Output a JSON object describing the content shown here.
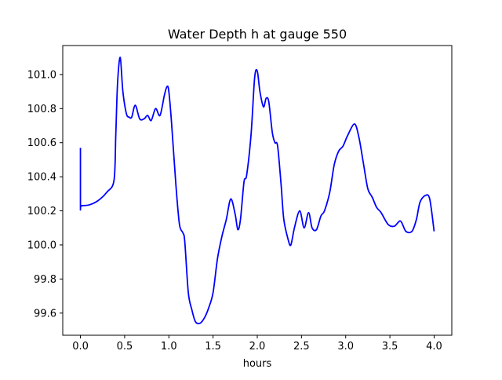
{
  "chart_data": {
    "type": "line",
    "title": "Water Depth h at gauge 550",
    "xlabel": "hours",
    "ylabel": "",
    "xlim": [
      -0.2,
      4.2
    ],
    "ylim": [
      99.47,
      101.17
    ],
    "xticks": [
      0.0,
      0.5,
      1.0,
      1.5,
      2.0,
      2.5,
      3.0,
      3.5,
      4.0
    ],
    "xtick_labels": [
      "0.0",
      "0.5",
      "1.0",
      "1.5",
      "2.0",
      "2.5",
      "3.0",
      "3.5",
      "4.0"
    ],
    "yticks": [
      99.6,
      99.8,
      100.0,
      100.2,
      100.4,
      100.6,
      100.8,
      101.0
    ],
    "ytick_labels": [
      "99.6",
      "99.8",
      "100.0",
      "100.2",
      "100.4",
      "100.6",
      "100.8",
      "101.0"
    ],
    "grid": false,
    "series": [
      {
        "color": "#0000ff",
        "x": [
          0.0,
          0.0,
          0.01,
          0.1,
          0.2,
          0.3,
          0.38,
          0.4,
          0.42,
          0.45,
          0.48,
          0.52,
          0.55,
          0.58,
          0.62,
          0.67,
          0.72,
          0.76,
          0.8,
          0.85,
          0.9,
          0.95,
          0.98,
          1.0,
          1.03,
          1.08,
          1.12,
          1.16,
          1.18,
          1.22,
          1.26,
          1.3,
          1.35,
          1.4,
          1.45,
          1.5,
          1.55,
          1.6,
          1.65,
          1.7,
          1.75,
          1.78,
          1.81,
          1.85,
          1.88,
          1.93,
          1.97,
          2.0,
          2.03,
          2.07,
          2.1,
          2.13,
          2.17,
          2.2,
          2.23,
          2.27,
          2.3,
          2.35,
          2.38,
          2.42,
          2.48,
          2.53,
          2.58,
          2.62,
          2.67,
          2.72,
          2.76,
          2.82,
          2.87,
          2.92,
          2.97,
          3.02,
          3.1,
          3.15,
          3.2,
          3.25,
          3.3,
          3.35,
          3.4,
          3.48,
          3.55,
          3.62,
          3.68,
          3.75,
          3.8,
          3.84,
          3.9,
          3.95,
          4.0
        ],
        "y": [
          100.57,
          100.23,
          100.23,
          100.235,
          100.26,
          100.31,
          100.38,
          100.65,
          100.95,
          101.1,
          100.9,
          100.77,
          100.75,
          100.75,
          100.82,
          100.74,
          100.74,
          100.76,
          100.73,
          100.8,
          100.76,
          100.88,
          100.93,
          100.9,
          100.72,
          100.35,
          100.12,
          100.07,
          100.02,
          99.72,
          99.62,
          99.55,
          99.54,
          99.57,
          99.63,
          99.72,
          99.92,
          100.05,
          100.15,
          100.27,
          100.18,
          100.09,
          100.15,
          100.37,
          100.41,
          100.65,
          100.98,
          101.02,
          100.9,
          100.81,
          100.86,
          100.84,
          100.66,
          100.6,
          100.58,
          100.35,
          100.15,
          100.03,
          100.0,
          100.1,
          100.2,
          100.1,
          100.19,
          100.1,
          100.09,
          100.17,
          100.2,
          100.31,
          100.47,
          100.55,
          100.58,
          100.64,
          100.71,
          100.63,
          100.48,
          100.33,
          100.28,
          100.22,
          100.19,
          100.12,
          100.11,
          100.14,
          100.08,
          100.08,
          100.15,
          100.25,
          100.29,
          100.27,
          100.08
        ]
      }
    ]
  }
}
